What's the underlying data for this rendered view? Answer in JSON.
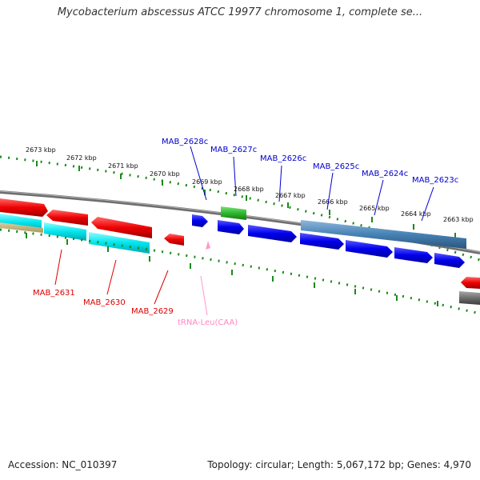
{
  "title": "Mycobacterium abscessus ATCC 19977 chromosome 1, complete se...",
  "footer": {
    "accession": "Accession: NC_010397",
    "topology": "Topology: circular; Length: 5,067,172 bp; Genes: 4,970"
  },
  "colors": {
    "tick": "#1a8a1a",
    "backbone": "#7a7a7a",
    "reverse_gene": "#0000dd",
    "forward_gene": "#ee0000",
    "rrna": "#00e5ee",
    "pseudo": "#4682b4",
    "trna": "#ff99cc",
    "green_feature": "#2db82d",
    "reverse_label": "#0000cc",
    "forward_label": "#dd0000"
  },
  "scale_labels": [
    "2673 kbp",
    "2672 kbp",
    "2671 kbp",
    "2670 kbp",
    "2669 kbp",
    "2668 kbp",
    "2667 kbp",
    "2666 kbp",
    "2665 kbp",
    "2664 kbp",
    "2663 kbp"
  ],
  "reverse_labels": [
    "MAB_2628c",
    "MAB_2627c",
    "MAB_2626c",
    "MAB_2625c",
    "MAB_2624c",
    "MAB_2623c"
  ],
  "forward_labels": [
    "MAB_2631",
    "MAB_2630",
    "MAB_2629"
  ],
  "trna_label": "tRNA-Leu(CAA)"
}
